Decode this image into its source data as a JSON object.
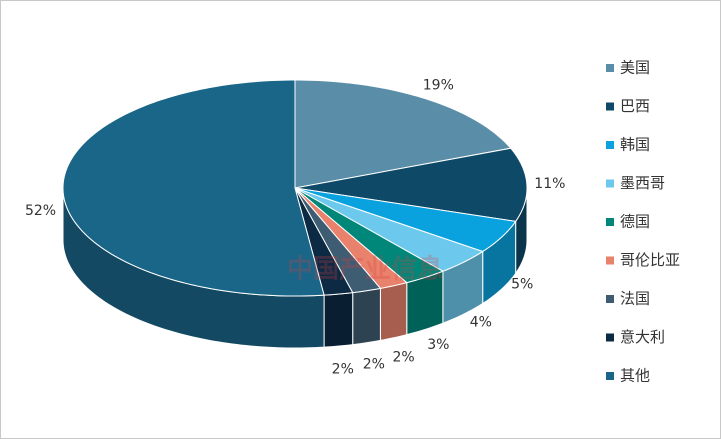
{
  "chart_data": {
    "type": "pie3d",
    "categories": [
      "美国",
      "巴西",
      "韩国",
      "墨西哥",
      "德国",
      "哥伦比亚",
      "法国",
      "意大利",
      "其他"
    ],
    "values": [
      19,
      11,
      5,
      4,
      3,
      2,
      2,
      2,
      52
    ],
    "value_labels": [
      "19%",
      "11%",
      "5%",
      "4%",
      "3%",
      "2%",
      "2%",
      "2%",
      "52%"
    ],
    "colors": [
      "#5a8ea8",
      "#0e4a68",
      "#0aa2de",
      "#6cc8ec",
      "#00877a",
      "#e8826c",
      "#3f5d72",
      "#0c2a44",
      "#1a6688"
    ],
    "legend": "right",
    "watermark": "中国产业信息"
  }
}
